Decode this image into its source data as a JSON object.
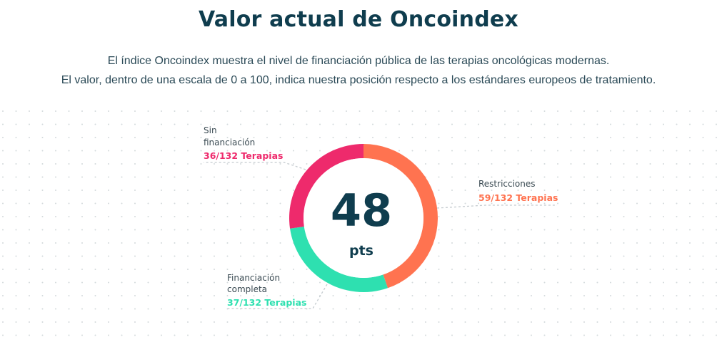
{
  "header": {
    "title": "Valor actual de Oncoindex",
    "description_line1": "El índice Oncoindex muestra el nivel de financiación pública de las terapias oncológicas modernas.",
    "description_line2": "El valor, dentro de una escala de 0 a 100, indica nuestra posición respecto a los estándares europeos de tratamiento."
  },
  "chart_data": {
    "type": "pie",
    "donut": true,
    "center_value": "48",
    "center_unit": "pts",
    "total": 132,
    "slices": [
      {
        "label_line1": "Restricciones",
        "label_line2": "",
        "value": 59,
        "value_text": "59/132 Terapias",
        "color": "#ff7350"
      },
      {
        "label_line1": "Financiación",
        "label_line2": "completa",
        "value": 37,
        "value_text": "37/132 Terapias",
        "color": "#2ee0b0"
      },
      {
        "label_line1": "Sin",
        "label_line2": "financiación",
        "value": 36,
        "value_text": "36/132 Terapias",
        "color": "#ee2a6c"
      }
    ]
  }
}
